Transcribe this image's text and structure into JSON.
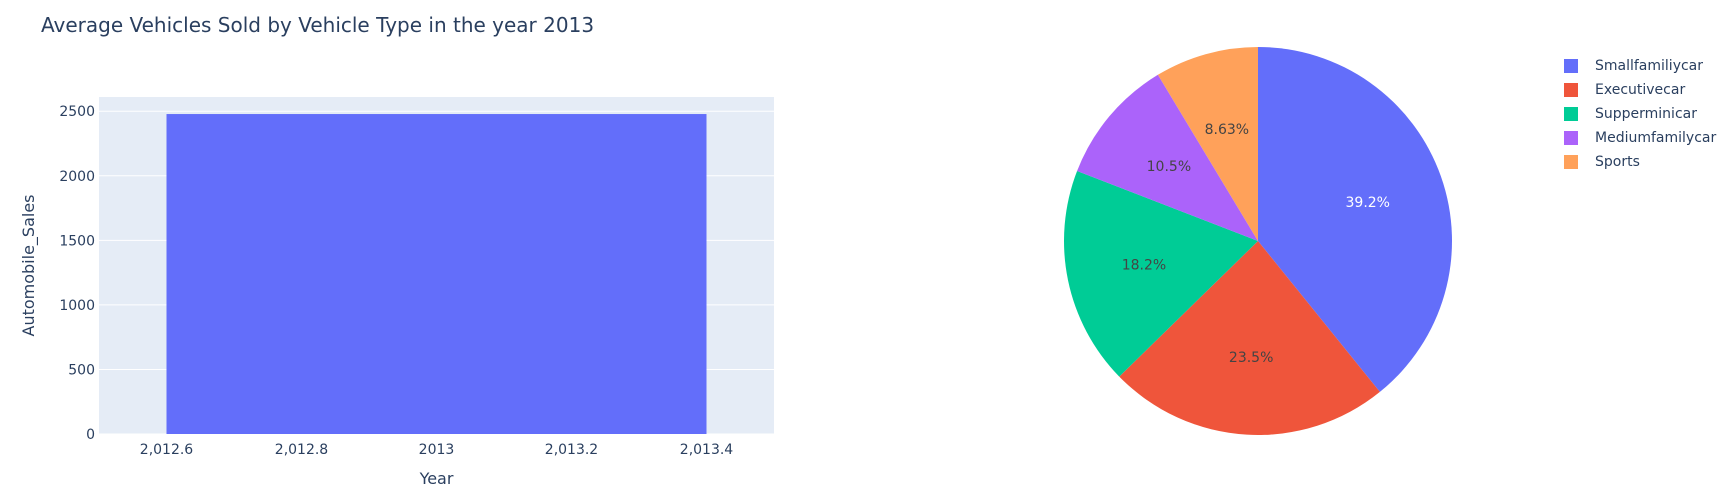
{
  "title": "Average Vehicles Sold by Vehicle Type in the year 2013",
  "chart_data": [
    {
      "type": "bar",
      "x": [
        2013
      ],
      "values": [
        2478
      ],
      "bar_width": 0.8,
      "xlabel": "Year",
      "ylabel": "Automobile_Sales",
      "xlim": [
        2012.5,
        2013.5
      ],
      "ylim": [
        0,
        2610
      ],
      "xticks": [
        2012.6,
        2012.8,
        2013,
        2013.2,
        2013.4
      ],
      "xtick_labels": [
        "2,012.6",
        "2,012.8",
        "2013",
        "2,013.2",
        "2,013.4"
      ],
      "yticks": [
        0,
        500,
        1000,
        1500,
        2000,
        2500
      ],
      "ytick_labels": [
        "0",
        "500",
        "1000",
        "1500",
        "2000",
        "2500"
      ],
      "bar_color": "#636efa",
      "plot_bg": "#e5ecf6",
      "grid": true
    },
    {
      "type": "pie",
      "labels": [
        "Smallfamiliycar",
        "Executivecar",
        "Supperminicar",
        "Mediumfamilycar",
        "Sports"
      ],
      "values": [
        39.2,
        23.5,
        18.2,
        10.5,
        8.63
      ],
      "text_labels": [
        "39.2%",
        "23.5%",
        "18.2%",
        "10.5%",
        "8.63%"
      ],
      "colors": [
        "#636efa",
        "#ef553b",
        "#00cc96",
        "#ab63fa",
        "#ffa15a"
      ],
      "text_colors": [
        "#ffffff",
        "#444444",
        "#444444",
        "#444444",
        "#444444"
      ],
      "legend_position": "top-right"
    }
  ]
}
